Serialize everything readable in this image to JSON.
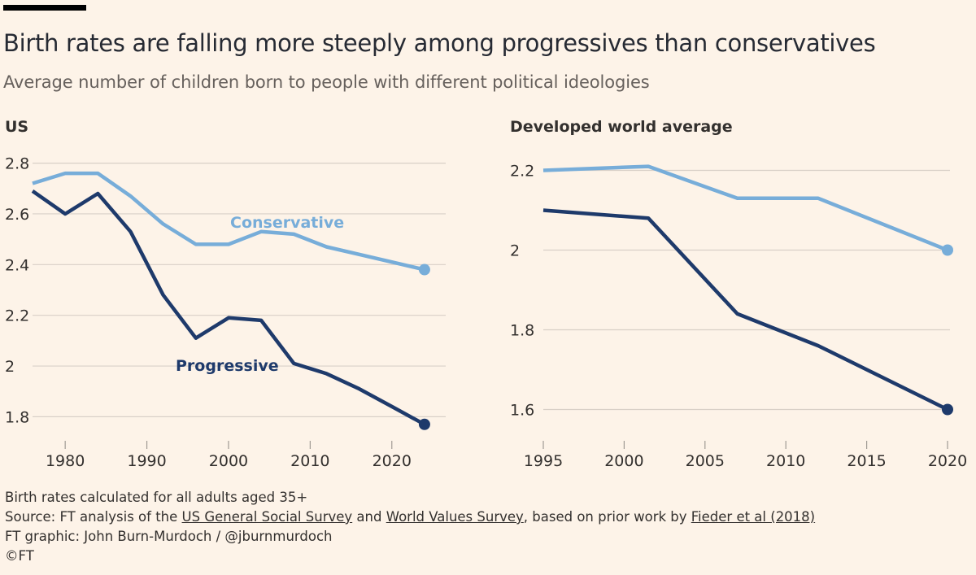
{
  "title": "Birth rates are falling more steeply among progressives than conservatives",
  "subtitle": "Average number of children born to people with different political ideologies",
  "colors": {
    "background": "#fdf3e8",
    "conservative": "#77add9",
    "progressive": "#1e3a6b",
    "grid": "#d9d0c7",
    "text": "#33302e"
  },
  "chart_data": [
    {
      "type": "line",
      "title": "US",
      "xlim": [
        1976,
        2026
      ],
      "ylim": [
        1.75,
        2.85
      ],
      "yticks": [
        1.8,
        2,
        2.2,
        2.4,
        2.6,
        2.8
      ],
      "ytick_labels": [
        "1.8",
        "2",
        "2.2",
        "2.4",
        "2.6",
        "2.8"
      ],
      "xticks": [
        1980,
        1990,
        2000,
        2010,
        2020
      ],
      "xtick_labels": [
        "1980",
        "1990",
        "2000",
        "2010",
        "2020"
      ],
      "grid": true,
      "series": [
        {
          "name": "Conservative",
          "color": "#77add9",
          "x": [
            1976,
            1980,
            1984,
            1988,
            1992,
            1996,
            2000,
            2004,
            2008,
            2012,
            2016,
            2020,
            2024
          ],
          "y": [
            2.72,
            2.76,
            2.76,
            2.67,
            2.56,
            2.48,
            2.48,
            2.53,
            2.52,
            2.47,
            2.44,
            2.41,
            2.38
          ]
        },
        {
          "name": "Progressive",
          "color": "#1e3a6b",
          "x": [
            1976,
            1980,
            1984,
            1988,
            1992,
            1996,
            2000,
            2004,
            2008,
            2012,
            2016,
            2020,
            2024
          ],
          "y": [
            2.69,
            2.6,
            2.68,
            2.53,
            2.28,
            2.11,
            2.19,
            2.18,
            2.01,
            1.97,
            1.91,
            1.84,
            1.77
          ]
        }
      ],
      "annotations": [
        {
          "text": "Conservative",
          "series": "Conservative"
        },
        {
          "text": "Progressive",
          "series": "Progressive"
        }
      ]
    },
    {
      "type": "line",
      "title": "Developed world average",
      "xlim": [
        1995,
        2020
      ],
      "ylim": [
        1.55,
        2.25
      ],
      "yticks": [
        1.6,
        1.8,
        2,
        2.2
      ],
      "ytick_labels": [
        "1.6",
        "1.8",
        "2",
        "2.2"
      ],
      "xticks": [
        1995,
        2000,
        2005,
        2010,
        2015,
        2020
      ],
      "xtick_labels": [
        "1995",
        "2000",
        "2005",
        "2010",
        "2015",
        "2020"
      ],
      "grid": true,
      "series": [
        {
          "name": "Conservative",
          "color": "#77add9",
          "x": [
            1995,
            2001.5,
            2007,
            2012,
            2020
          ],
          "y": [
            2.2,
            2.21,
            2.13,
            2.13,
            2.0
          ]
        },
        {
          "name": "Progressive",
          "color": "#1e3a6b",
          "x": [
            1995,
            2001.5,
            2007,
            2012,
            2020
          ],
          "y": [
            2.1,
            2.08,
            1.84,
            1.76,
            1.6
          ]
        }
      ]
    }
  ],
  "footer": {
    "note": "Birth rates calculated for all adults aged 35+",
    "source_prefix": "Source: FT analysis of the ",
    "source_link1": "US General Social Survey",
    "source_and": " and ",
    "source_link2": "World Values Survey",
    "source_mid": ", based on prior work by ",
    "source_link3": "Fieder et al (2018)",
    "graphic": "FT graphic: John Burn-Murdoch / @jburnmurdoch",
    "copyright": "©FT"
  }
}
